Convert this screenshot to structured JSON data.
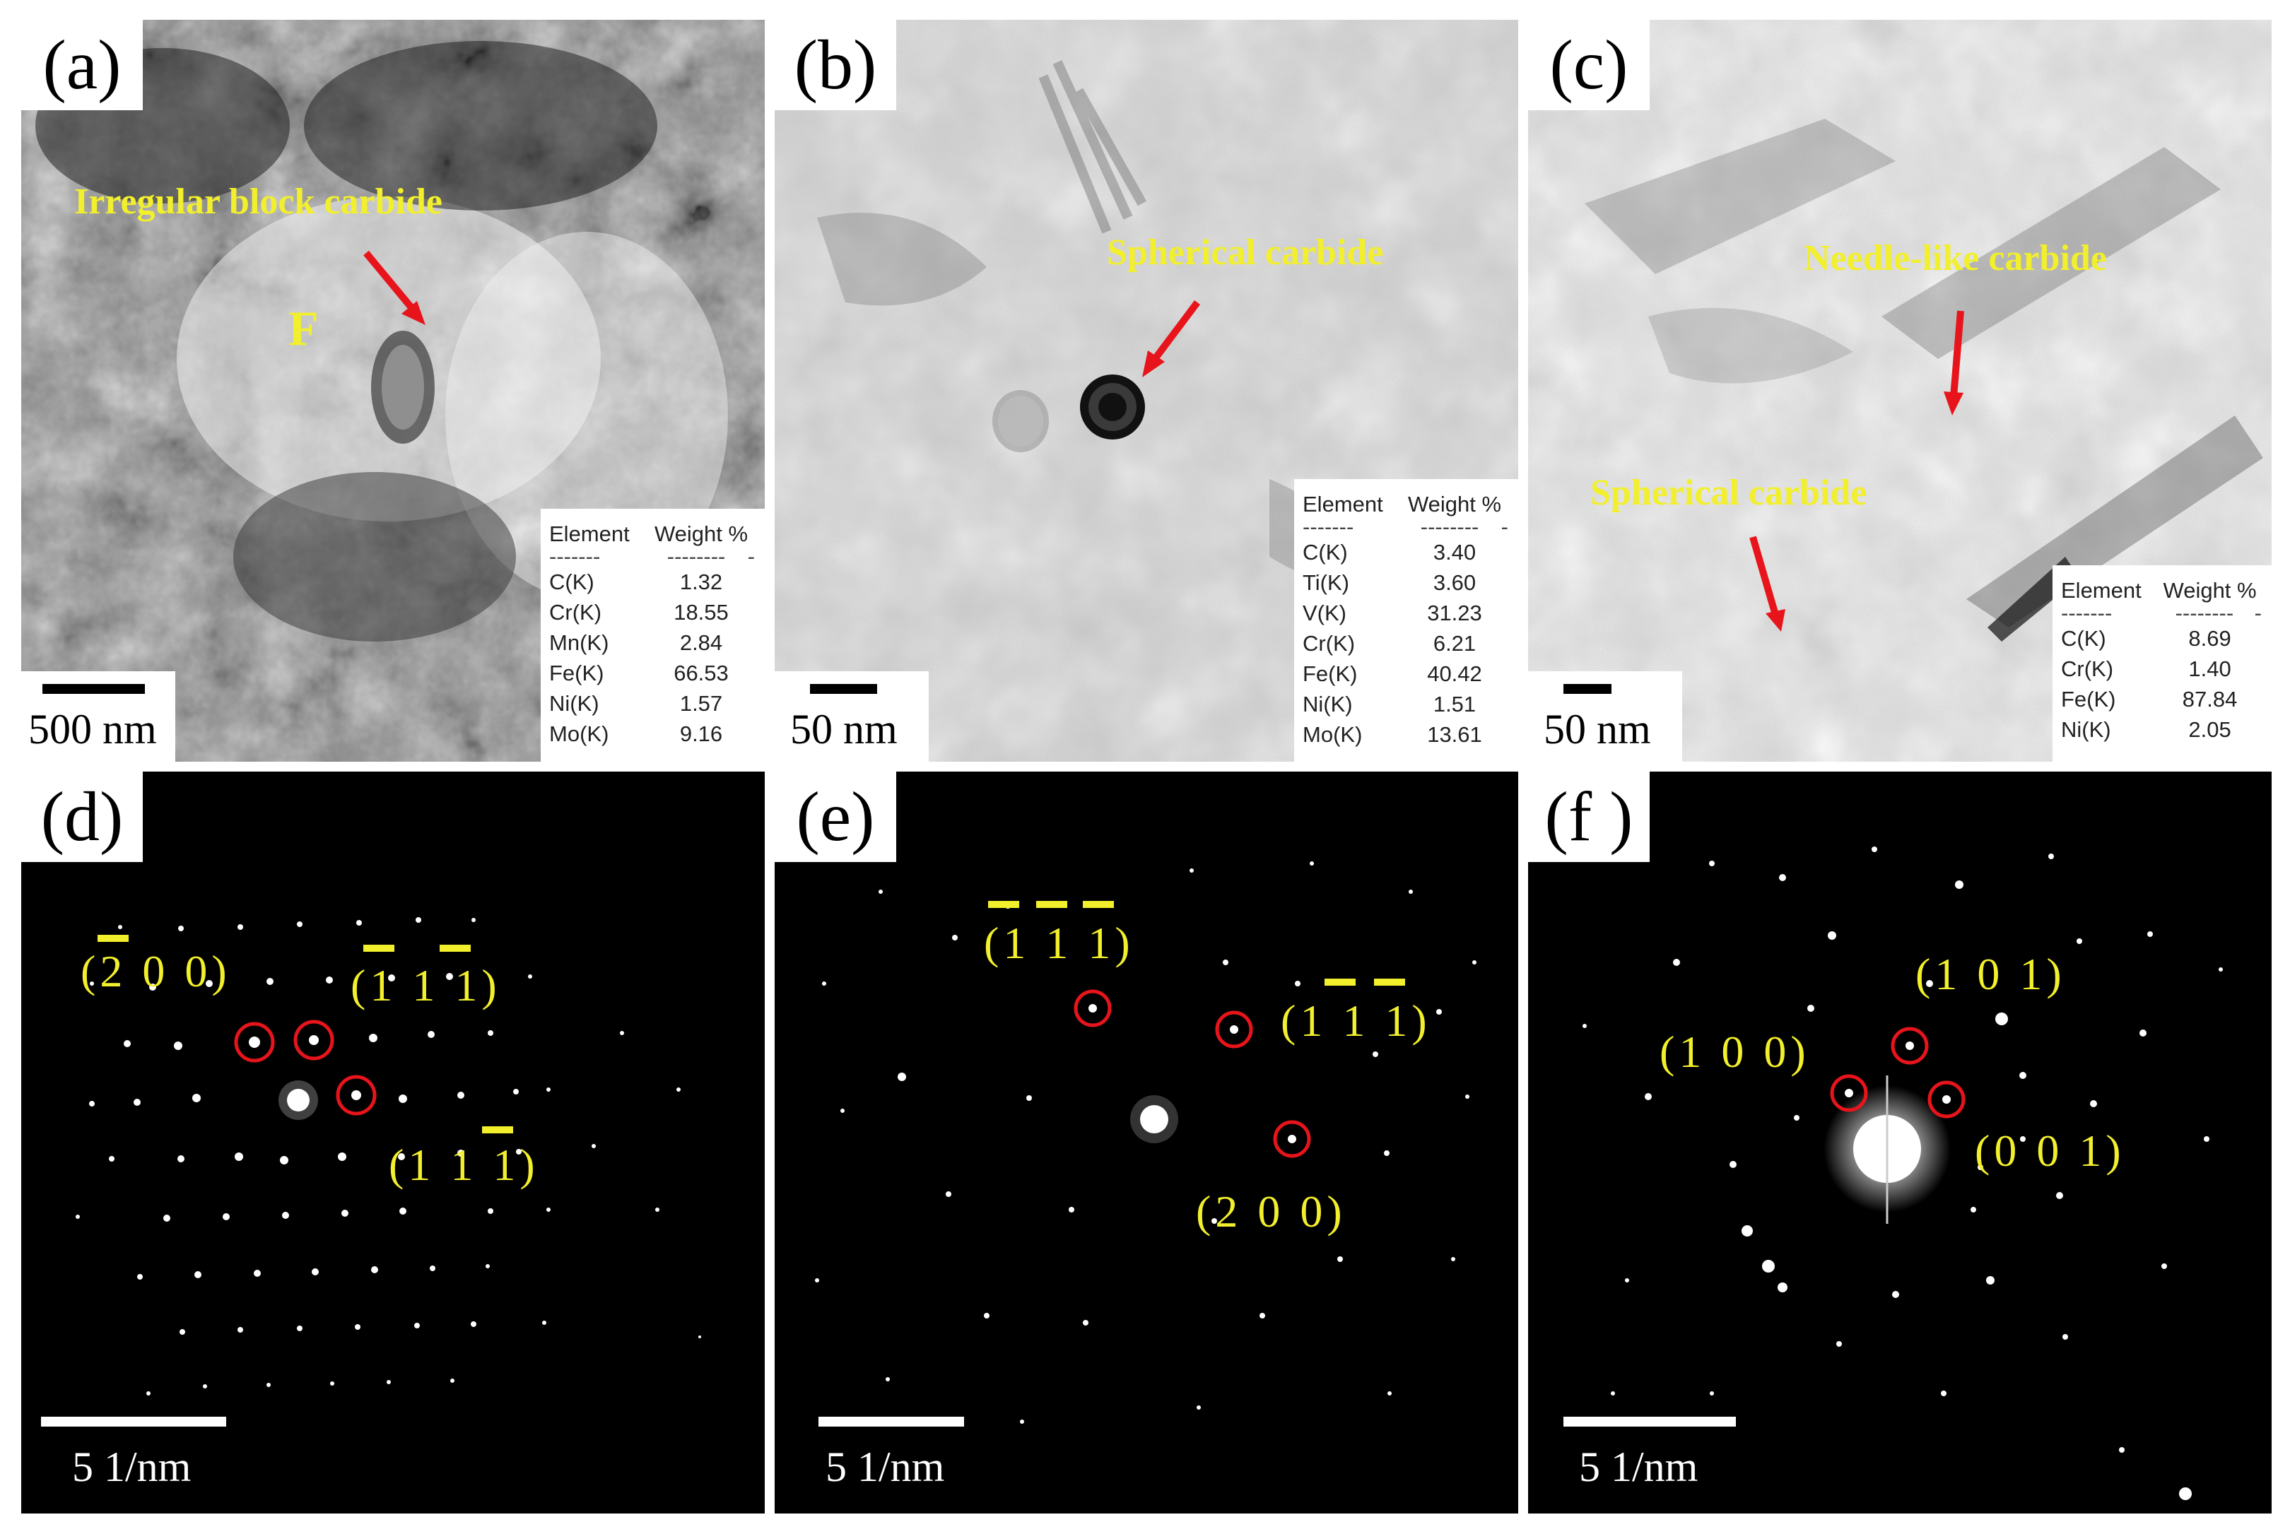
{
  "panels": {
    "a": {
      "tag": "(a)",
      "scale": "500 nm",
      "label1": "Irregular block carbide",
      "label2": "F",
      "table": {
        "h1": "Element",
        "h2": "Weight %",
        "d1": "-------",
        "d2": "--------",
        "d3": "-",
        "rows": [
          [
            "C(K)",
            "1.32"
          ],
          [
            "Cr(K)",
            "18.55"
          ],
          [
            "Mn(K)",
            "2.84"
          ],
          [
            "Fe(K)",
            "66.53"
          ],
          [
            "Ni(K)",
            "1.57"
          ],
          [
            "Mo(K)",
            "9.16"
          ]
        ]
      }
    },
    "b": {
      "tag": "(b)",
      "scale": "50 nm",
      "label1": "Spherical carbide",
      "table": {
        "h1": "Element",
        "h2": "Weight %",
        "d1": "-------",
        "d2": "--------",
        "d3": "-",
        "rows": [
          [
            "C(K)",
            "3.40"
          ],
          [
            "Ti(K)",
            "3.60"
          ],
          [
            "V(K)",
            "31.23"
          ],
          [
            "Cr(K)",
            "6.21"
          ],
          [
            "Fe(K)",
            "40.42"
          ],
          [
            "Ni(K)",
            "1.51"
          ],
          [
            "Mo(K)",
            "13.61"
          ]
        ]
      }
    },
    "c": {
      "tag": "(c)",
      "scale": "50 nm",
      "label1": "Needle-like carbide",
      "label2": "Spherical carbide",
      "table": {
        "h1": "Element",
        "h2": "Weight %",
        "d1": "-------",
        "d2": "--------",
        "d3": "-",
        "rows": [
          [
            "C(K)",
            "8.69"
          ],
          [
            "Cr(K)",
            "1.40"
          ],
          [
            "Fe(K)",
            "87.84"
          ],
          [
            "Ni(K)",
            "2.05"
          ]
        ]
      }
    },
    "d": {
      "tag": "(d)",
      "scale": "5 1/nm",
      "i1": "(2 0 0)",
      "i2": "(1 1 1)",
      "i3": "(1 1 1)"
    },
    "e": {
      "tag": "(e)",
      "scale": "5 1/nm",
      "i1": "(1 1 1)",
      "i2": "(1 1 1)",
      "i3": "(2 0 0)"
    },
    "f": {
      "tag": "(f )",
      "scale": "5 1/nm",
      "i1": "(1 0 1)",
      "i2": "(1 0 0)",
      "i3": "(0 0 1)"
    }
  },
  "colors": {
    "label": "#f2ef2c",
    "arrow": "#e8141b",
    "circle": "#e8141b"
  }
}
